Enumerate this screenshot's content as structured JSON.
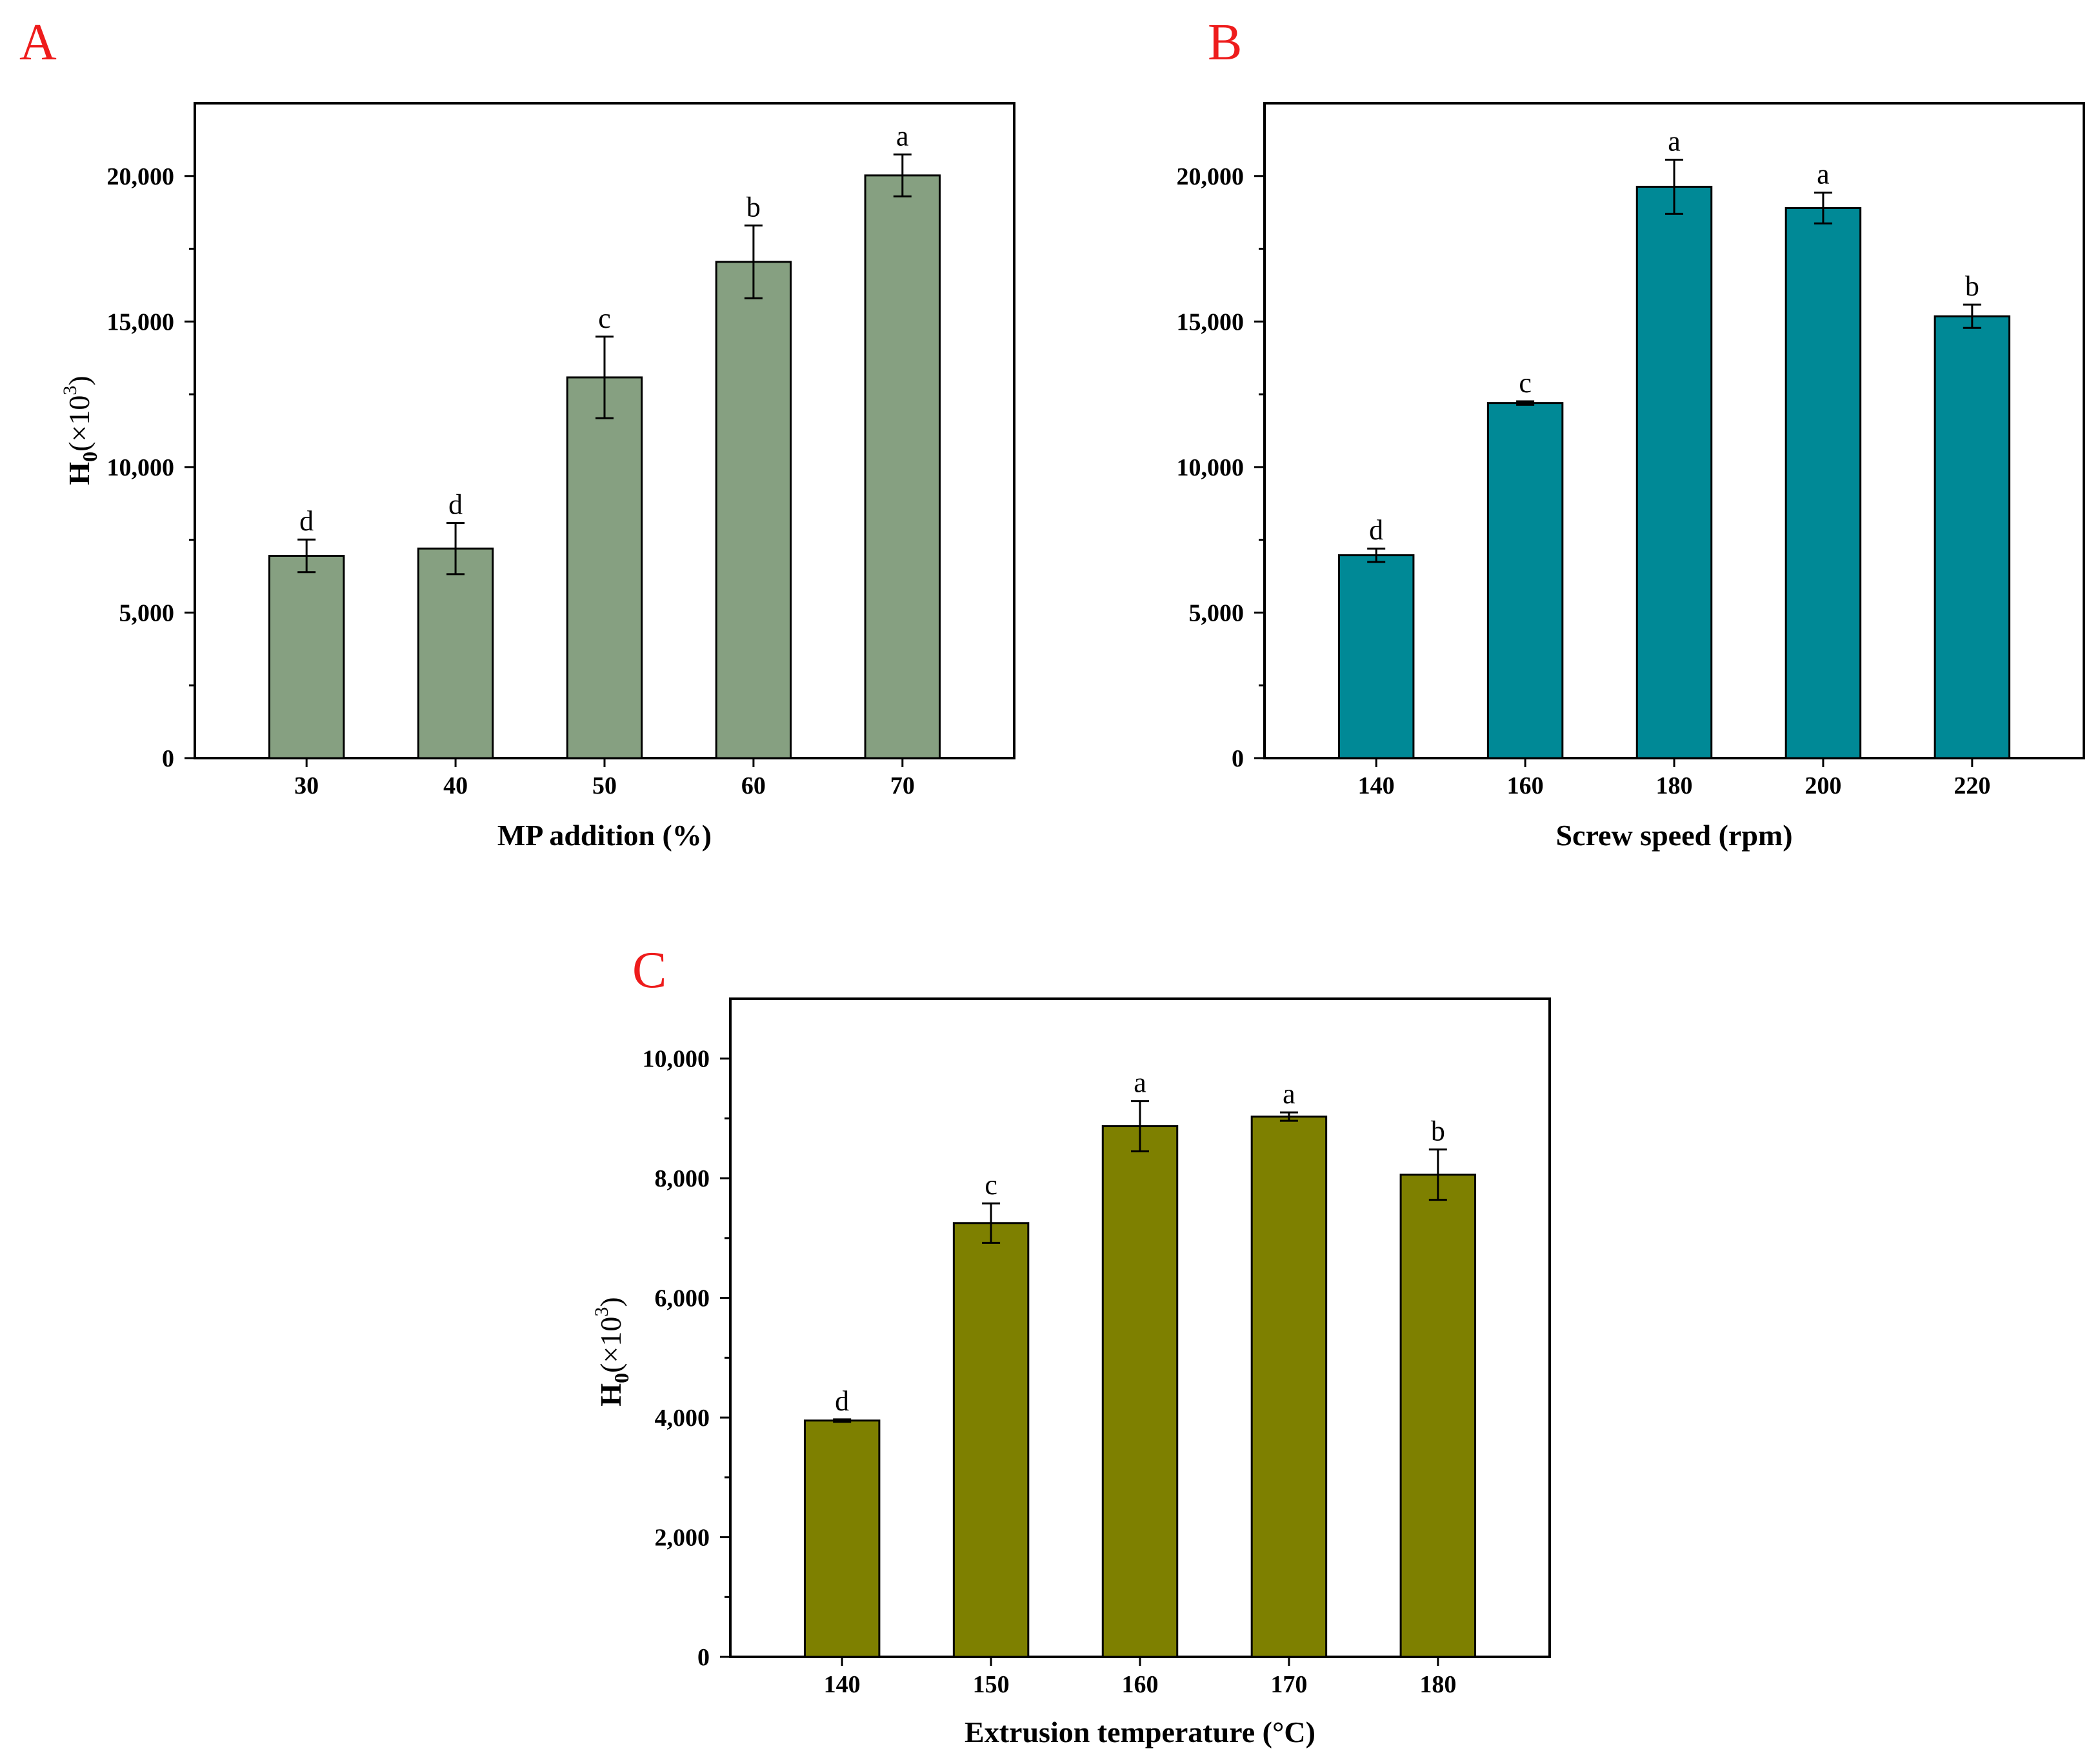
{
  "colors": {
    "panel_letter": "#ee1c1c",
    "axis": "#000000",
    "background": "#ffffff"
  },
  "chart_data": [
    {
      "panel": "A",
      "type": "bar",
      "categories": [
        "30",
        "40",
        "50",
        "60",
        "70"
      ],
      "values": [
        6950,
        7200,
        13080,
        17050,
        20020
      ],
      "errors": [
        560,
        880,
        1400,
        1250,
        720
      ],
      "significance": [
        "d",
        "d",
        "c",
        "b",
        "a"
      ],
      "xlabel": "MP addition (%)",
      "ylabel_main": "H",
      "ylabel_sub": "0",
      "ylabel_rest": "(×10",
      "ylabel_sup": "3",
      "ylabel_close": ")",
      "ylim": [
        0,
        22500
      ],
      "yticks": [
        0,
        5000,
        10000,
        15000,
        20000
      ],
      "ytick_labels": [
        "0",
        "5,000",
        "10,000",
        "15,000",
        "20,000"
      ],
      "bar_color": "#86a081",
      "grid": false
    },
    {
      "panel": "B",
      "type": "bar",
      "categories": [
        "140",
        "160",
        "180",
        "200",
        "220"
      ],
      "values": [
        6970,
        12200,
        19630,
        18900,
        15180
      ],
      "errors": [
        230,
        60,
        930,
        530,
        400
      ],
      "significance": [
        "d",
        "c",
        "a",
        "a",
        "b"
      ],
      "xlabel": "Screw speed (rpm)",
      "ylabel_main": "",
      "ylabel_sub": "",
      "ylabel_rest": "",
      "ylabel_sup": "",
      "ylabel_close": "",
      "ylim": [
        0,
        22500
      ],
      "yticks": [
        0,
        5000,
        10000,
        15000,
        20000
      ],
      "ytick_labels": [
        "0",
        "5,000",
        "10,000",
        "15,000",
        "20,000"
      ],
      "bar_color": "#008996",
      "grid": false
    },
    {
      "panel": "C",
      "type": "bar",
      "categories": [
        "140",
        "150",
        "160",
        "170",
        "180"
      ],
      "values": [
        3950,
        7250,
        8870,
        9030,
        8060
      ],
      "errors": [
        20,
        330,
        420,
        70,
        420
      ],
      "significance": [
        "d",
        "c",
        "a",
        "a",
        "b"
      ],
      "xlabel": "Extrusion temperature (°C)",
      "ylabel_main": "H",
      "ylabel_sub": "0",
      "ylabel_rest": "(×10",
      "ylabel_sup": "3",
      "ylabel_close": ")",
      "ylim": [
        0,
        11000
      ],
      "yticks": [
        0,
        2000,
        4000,
        6000,
        8000,
        10000
      ],
      "ytick_labels": [
        "0",
        "2,000",
        "4,000",
        "6,000",
        "8,000",
        "10,000"
      ],
      "bar_color": "#7e8000",
      "grid": false
    }
  ]
}
